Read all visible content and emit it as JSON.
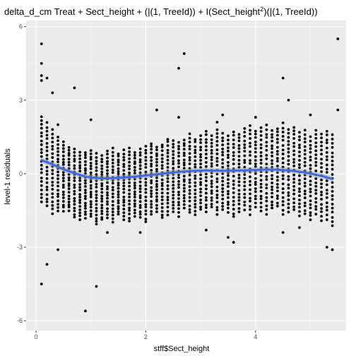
{
  "chart_data": {
    "type": "scatter",
    "title": {
      "prefix": "delta_d_cm Treat + Sect_height + (|(1, TreeId)) + I(Sect_height",
      "superscript": "2",
      "suffix": ")(|(1, TreeId))"
    },
    "xlabel": "stff$Sect_height",
    "ylabel": "level-1 residuals",
    "xlim": [
      -0.18,
      5.65
    ],
    "ylim": [
      -6.4,
      6.25
    ],
    "x_ticks": [
      0,
      2,
      4
    ],
    "x_tick_labels": [
      "0",
      "2",
      "4"
    ],
    "y_ticks": [
      -6,
      -3,
      0,
      3,
      6
    ],
    "y_tick_labels": [
      "-6",
      "-3",
      "0",
      "3",
      "6"
    ],
    "grid": true,
    "colors": {
      "panel": "#ebebeb",
      "grid_major": "#ffffff",
      "points": "#000000",
      "smooth": "#4169e1",
      "band": "#a9a9a9"
    },
    "smooth_line": {
      "x": [
        0.1,
        0.3,
        0.5,
        0.7,
        0.9,
        1.1,
        1.3,
        1.5,
        1.7,
        1.9,
        2.1,
        2.3,
        2.5,
        2.7,
        2.9,
        3.1,
        3.3,
        3.5,
        3.7,
        3.9,
        4.1,
        4.3,
        4.5,
        4.7,
        4.9,
        5.1,
        5.3,
        5.4
      ],
      "y": [
        0.55,
        0.38,
        0.18,
        0.02,
        -0.12,
        -0.18,
        -0.19,
        -0.17,
        -0.14,
        -0.1,
        -0.05,
        0.0,
        0.05,
        0.09,
        0.12,
        0.13,
        0.12,
        0.12,
        0.13,
        0.14,
        0.16,
        0.17,
        0.15,
        0.11,
        0.05,
        -0.04,
        -0.15,
        -0.22
      ]
    },
    "point_columns": {
      "x_start": 0.1,
      "x_step": 0.1,
      "count": 54,
      "spread_low": [
        -1.7,
        -1.8,
        -2.0,
        -1.8,
        -1.7,
        -1.6,
        -1.8,
        -1.8,
        -1.7,
        -1.6,
        -1.9,
        -1.7,
        -1.6,
        -1.8,
        -1.5,
        -1.7,
        -1.8,
        -1.6,
        -1.7,
        -1.9,
        -1.6,
        -1.5,
        -1.8,
        -1.7,
        -1.6,
        -1.8,
        -1.5,
        -1.7,
        -1.8,
        -1.6,
        -1.7,
        -1.5,
        -1.8,
        -1.6,
        -1.7,
        -1.9,
        -1.7,
        -1.6,
        -1.8,
        -1.5,
        -1.7,
        -1.8,
        -1.6,
        -1.5,
        -1.8,
        -1.7,
        -1.6,
        -1.8,
        -1.7,
        -1.9,
        -1.6,
        -1.8,
        -1.7,
        -1.9
      ],
      "spread_high": [
        1.8,
        1.6,
        1.4,
        1.2,
        1.1,
        1.0,
        1.0,
        0.9,
        1.0,
        1.1,
        1.0,
        0.9,
        1.1,
        1.2,
        1.0,
        1.1,
        1.2,
        1.0,
        1.1,
        1.2,
        1.3,
        1.1,
        1.2,
        1.4,
        1.3,
        1.2,
        1.3,
        1.5,
        1.3,
        1.4,
        1.6,
        1.4,
        1.7,
        1.5,
        1.4,
        1.6,
        1.5,
        1.7,
        1.8,
        1.6,
        1.7,
        1.8,
        1.6,
        1.7,
        1.9,
        1.7,
        1.8,
        1.6,
        1.7,
        1.5,
        1.8,
        1.7,
        1.9,
        1.8
      ],
      "points_per_column": 22
    },
    "outliers": [
      {
        "x": 0.1,
        "y": 5.3
      },
      {
        "x": 0.1,
        "y": 4.5
      },
      {
        "x": 0.1,
        "y": 4.0
      },
      {
        "x": 0.1,
        "y": 3.8
      },
      {
        "x": 0.1,
        "y": -4.5
      },
      {
        "x": 0.2,
        "y": -3.7
      },
      {
        "x": 0.2,
        "y": 3.9
      },
      {
        "x": 0.3,
        "y": 3.3
      },
      {
        "x": 0.4,
        "y": -3.1
      },
      {
        "x": 0.7,
        "y": 3.5
      },
      {
        "x": 0.9,
        "y": -5.6
      },
      {
        "x": 1.1,
        "y": -4.6
      },
      {
        "x": 1.3,
        "y": -2.4
      },
      {
        "x": 1.9,
        "y": -2.4
      },
      {
        "x": 2.2,
        "y": 2.6
      },
      {
        "x": 2.6,
        "y": 4.3
      },
      {
        "x": 2.7,
        "y": 4.9
      },
      {
        "x": 2.6,
        "y": 2.3
      },
      {
        "x": 3.1,
        "y": -2.3
      },
      {
        "x": 3.5,
        "y": -2.6
      },
      {
        "x": 3.6,
        "y": -2.8
      },
      {
        "x": 3.3,
        "y": 2.1
      },
      {
        "x": 4.5,
        "y": 3.9
      },
      {
        "x": 4.5,
        "y": -2.4
      },
      {
        "x": 4.6,
        "y": 3.0
      },
      {
        "x": 4.8,
        "y": -2.2
      },
      {
        "x": 5.3,
        "y": -3.0
      },
      {
        "x": 5.4,
        "y": -3.1
      },
      {
        "x": 5.5,
        "y": 5.5
      },
      {
        "x": 5.5,
        "y": 2.6
      },
      {
        "x": 1.0,
        "y": 2.2
      },
      {
        "x": 0.4,
        "y": 2.0
      },
      {
        "x": 3.4,
        "y": 2.4
      },
      {
        "x": 4.0,
        "y": 2.3
      },
      {
        "x": 5.0,
        "y": 2.4
      }
    ]
  }
}
